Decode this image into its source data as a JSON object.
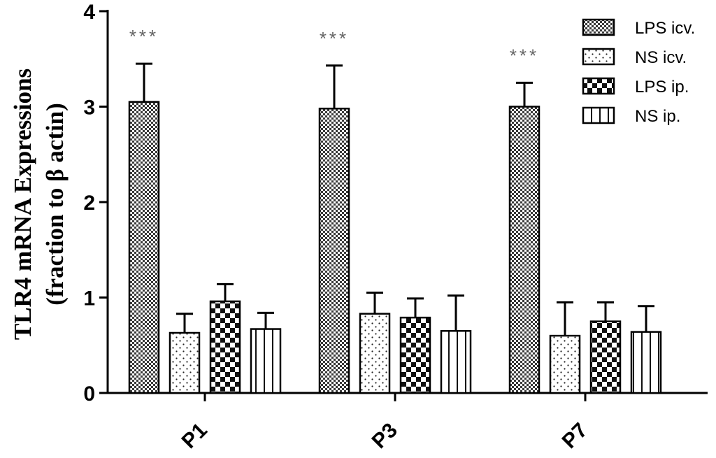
{
  "chart_data": {
    "type": "bar",
    "categories": [
      "P1",
      "P3",
      "P7"
    ],
    "series": [
      {
        "name": "LPS icv.",
        "values": [
          3.05,
          2.98,
          3.0
        ],
        "errors": [
          0.4,
          0.45,
          0.25
        ],
        "pattern": "dense-check"
      },
      {
        "name": "NS icv.",
        "values": [
          0.63,
          0.83,
          0.6
        ],
        "errors": [
          0.2,
          0.22,
          0.35
        ],
        "pattern": "dots"
      },
      {
        "name": "LPS ip.",
        "values": [
          0.96,
          0.79,
          0.75
        ],
        "errors": [
          0.18,
          0.2,
          0.2
        ],
        "pattern": "checker"
      },
      {
        "name": "NS ip.",
        "values": [
          0.67,
          0.65,
          0.64
        ],
        "errors": [
          0.17,
          0.37,
          0.27
        ],
        "pattern": "vlines"
      }
    ],
    "annotations": [
      {
        "category": "P1",
        "series": "LPS icv.",
        "text": "***"
      },
      {
        "category": "P3",
        "series": "LPS icv.",
        "text": "***"
      },
      {
        "category": "P7",
        "series": "LPS icv.",
        "text": "***"
      }
    ],
    "ylabel_line1": "TLR4 mRNA Expressions",
    "ylabel_line2": "(fraction to β actin)",
    "yticks": [
      0,
      1,
      2,
      3,
      4
    ],
    "ylim": [
      0,
      4
    ],
    "legend_position": "top-right",
    "grid": false
  }
}
